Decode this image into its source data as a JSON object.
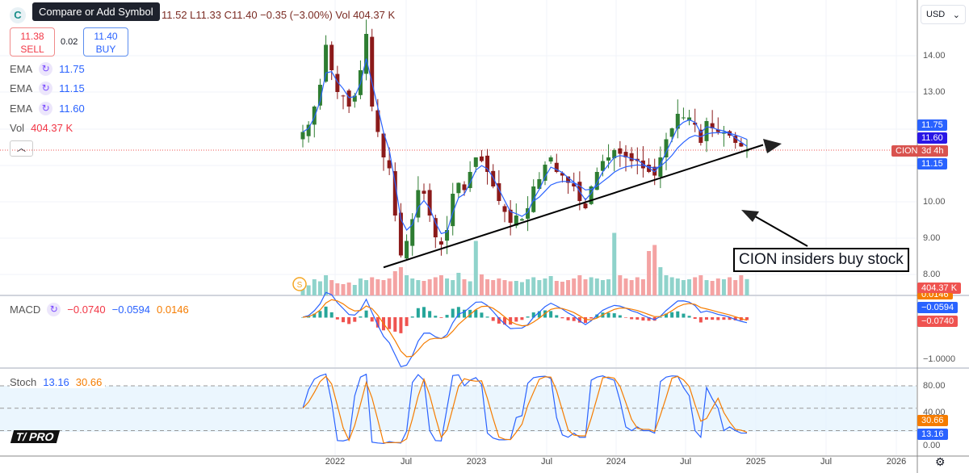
{
  "header": {
    "tooltip": "Compare or Add Symbol",
    "logo": "C",
    "ohlc": "11.52  L11.33  C11.40  −0.35 (−3.00%)  Vol 404.37 K",
    "sell_price": "11.38",
    "sell_label": "SELL",
    "spread": "0.02",
    "buy_price": "11.40",
    "buy_label": "BUY",
    "currency": "USD"
  },
  "legend": {
    "ema": [
      {
        "label": "EMA",
        "value": "11.75"
      },
      {
        "label": "EMA",
        "value": "11.15"
      },
      {
        "label": "EMA",
        "value": "11.60"
      }
    ],
    "vol_label": "Vol",
    "vol_value": "404.37 K",
    "macd_label": "MACD",
    "macd": "−0.0740",
    "signal": "−0.0594",
    "hist": "0.0146",
    "stoch_label": "Stoch",
    "stoch_k": "13.16",
    "stoch_d": "30.66"
  },
  "price_axis": [
    "14.00",
    "13.00",
    "10.00",
    "9.00",
    "8.00"
  ],
  "macd_axis": [
    "−1.0000"
  ],
  "stoch_axis": [
    "80.00",
    "40.00",
    "0.00"
  ],
  "tags": {
    "ema1": "11.75",
    "ema3": "11.60",
    "symbol": "CION",
    "countdown": "3d 4h",
    "ema2": "11.15",
    "volume": "404.37 K",
    "hist": "0.0146",
    "signal": "−0.0594",
    "macd": "−0.0740",
    "stoch_d": "30.66",
    "stoch_k": "13.16"
  },
  "time_axis": [
    "2022",
    "Jul",
    "2023",
    "Jul",
    "2024",
    "Jul",
    "2025",
    "Jul",
    "2026"
  ],
  "annotation": "CION insiders buy stock",
  "watermark": "PRO",
  "colors": {
    "up": "#26a69a",
    "down": "#ef5350",
    "ema": "#2962ff",
    "signal": "#f57c00"
  },
  "chart_data": {
    "type": "candlestick",
    "symbol": "CION",
    "period": "semi-monthly",
    "start": "2021-10",
    "end": "2024-12",
    "ylim": [
      7.7,
      15.2
    ],
    "closes": [
      11.9,
      12.1,
      12.6,
      13.2,
      14.3,
      13.6,
      13.0,
      12.9,
      12.6,
      12.9,
      13.6,
      14.6,
      12.6,
      11.9,
      11.2,
      10.9,
      9.6,
      8.5,
      8.9,
      9.5,
      10.3,
      10.2,
      9.6,
      9.0,
      8.8,
      9.2,
      10.2,
      10.5,
      10.3,
      10.8,
      11.2,
      11.1,
      10.8,
      10.4,
      10.0,
      9.7,
      9.4,
      9.6,
      9.5,
      9.8,
      10.4,
      10.6,
      11.0,
      11.2,
      10.8,
      10.7,
      10.5,
      10.4,
      10.0,
      9.8,
      10.4,
      10.8,
      11.1,
      11.2,
      11.4,
      11.3,
      11.2,
      11.1,
      11.1,
      10.9,
      10.8,
      10.7,
      11.2,
      11.7,
      12.0,
      12.4,
      12.3,
      12.3,
      12.1,
      11.6,
      12.2,
      12.0,
      11.9,
      11.9,
      11.8,
      11.6,
      11.5,
      11.4
    ],
    "volume_k": [
      300,
      250,
      400,
      350,
      500,
      380,
      300,
      280,
      320,
      260,
      420,
      380,
      450,
      400,
      380,
      420,
      600,
      700,
      500,
      420,
      380,
      360,
      400,
      450,
      500,
      420,
      380,
      560,
      400,
      350,
      1350,
      520,
      400,
      380,
      420,
      380,
      350,
      360,
      330,
      400,
      450,
      380,
      420,
      480,
      360,
      340,
      380,
      420,
      500,
      400,
      450,
      420,
      380,
      400,
      1550,
      500,
      420,
      380,
      450,
      400,
      1100,
      1250,
      700,
      500,
      450,
      420,
      380,
      400,
      450,
      500,
      380,
      360,
      420,
      400,
      450,
      380,
      500,
      404
    ],
    "trendline": {
      "from": [
        "2022-06",
        8.35
      ],
      "to": [
        "2024-12",
        11.5
      ]
    },
    "stoch_levels": [
      80,
      50,
      20
    ]
  }
}
